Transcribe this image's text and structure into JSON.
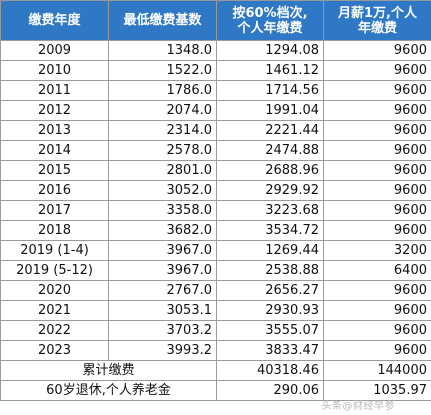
{
  "headers": {
    "year": "缴费年度",
    "min_base": "最低缴费基数",
    "pct60_line1": "按60%档次,",
    "pct60_line2": "个人年缴费",
    "salary_line1": "月薪1万,个人",
    "salary_line2": "年缴费"
  },
  "rows": [
    {
      "year": "2009",
      "min_base": "1348.0",
      "pct60": "1294.08",
      "salary": "9600"
    },
    {
      "year": "2010",
      "min_base": "1522.0",
      "pct60": "1461.12",
      "salary": "9600"
    },
    {
      "year": "2011",
      "min_base": "1786.0",
      "pct60": "1714.56",
      "salary": "9600"
    },
    {
      "year": "2012",
      "min_base": "2074.0",
      "pct60": "1991.04",
      "salary": "9600"
    },
    {
      "year": "2013",
      "min_base": "2314.0",
      "pct60": "2221.44",
      "salary": "9600"
    },
    {
      "year": "2014",
      "min_base": "2578.0",
      "pct60": "2474.88",
      "salary": "9600"
    },
    {
      "year": "2015",
      "min_base": "2801.0",
      "pct60": "2688.96",
      "salary": "9600"
    },
    {
      "year": "2016",
      "min_base": "3052.0",
      "pct60": "2929.92",
      "salary": "9600"
    },
    {
      "year": "2017",
      "min_base": "3358.0",
      "pct60": "3223.68",
      "salary": "9600"
    },
    {
      "year": "2018",
      "min_base": "3682.0",
      "pct60": "3534.72",
      "salary": "9600"
    },
    {
      "year": "2019 (1-4)",
      "min_base": "3967.0",
      "pct60": "1269.44",
      "salary": "3200"
    },
    {
      "year": "2019 (5-12)",
      "min_base": "3967.0",
      "pct60": "2538.88",
      "salary": "6400"
    },
    {
      "year": "2020",
      "min_base": "2767.0",
      "pct60": "2656.27",
      "salary": "9600"
    },
    {
      "year": "2021",
      "min_base": "3053.1",
      "pct60": "2930.93",
      "salary": "9600"
    },
    {
      "year": "2022",
      "min_base": "3703.2",
      "pct60": "3555.07",
      "salary": "9600"
    },
    {
      "year": "2023",
      "min_base": "3993.2",
      "pct60": "3833.47",
      "salary": "9600"
    }
  ],
  "total": {
    "label": "累计缴费",
    "pct60": "40318.46",
    "salary": "144000"
  },
  "pension": {
    "label": "60岁退休,个人养老金",
    "pct60": "290.06",
    "salary": "1035.97"
  },
  "watermark": "头条@财经早参"
}
